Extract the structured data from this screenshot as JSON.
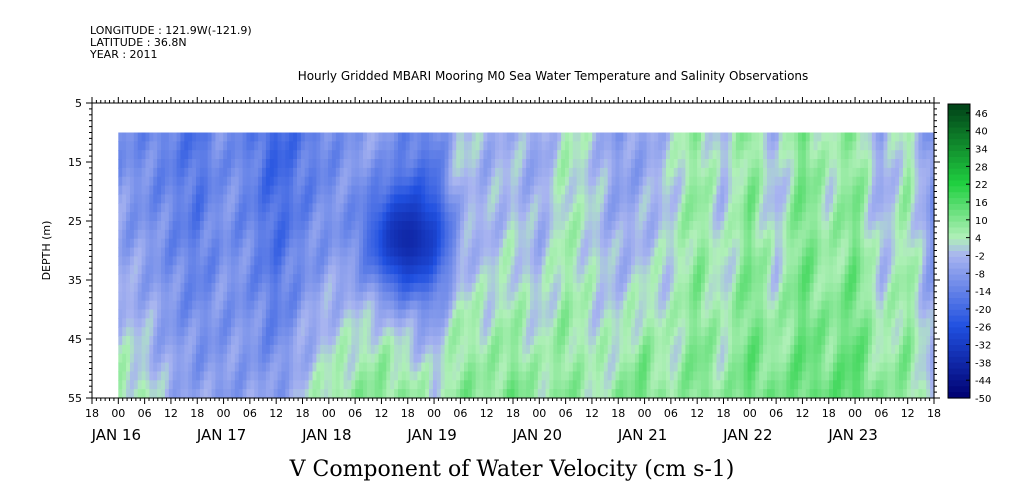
{
  "header": {
    "longitude": "LONGITUDE : 121.9W(-121.9)",
    "latitude": "LATITUDE : 36.8N",
    "year": "YEAR : 2011"
  },
  "chart_data": {
    "type": "heatmap",
    "title": "Hourly Gridded MBARI Mooring M0 Sea Water Temperature and Salinity Observations",
    "xlabel": "",
    "ylabel": "DEPTH (m)",
    "caption": "V Component of Water Velocity (cm s-1)",
    "y_ticks": [
      "5",
      "15",
      "25",
      "35",
      "45",
      "55"
    ],
    "y_range": [
      5,
      55
    ],
    "y_inverted": true,
    "data_depth_range": [
      10,
      55
    ],
    "x_hour_ticks": [
      "18",
      "00",
      "06",
      "12",
      "18",
      "00",
      "06",
      "12",
      "18",
      "00",
      "06",
      "12",
      "18",
      "00",
      "06",
      "12",
      "18",
      "00",
      "06",
      "12",
      "18",
      "00",
      "06",
      "12",
      "18",
      "00",
      "06",
      "12",
      "18",
      "00",
      "06",
      "12",
      "18"
    ],
    "x_date_labels": [
      "JAN 16",
      "JAN 17",
      "JAN 18",
      "JAN 19",
      "JAN 20",
      "JAN 21",
      "JAN 22",
      "JAN 23"
    ],
    "x_range": [
      "2011-01-15T18:00",
      "2011-01-23T18:00"
    ],
    "data_time_range": [
      "2011-01-16T00:00",
      "2011-01-23T18:00"
    ],
    "colorbar": {
      "labels": [
        "46",
        "40",
        "34",
        "28",
        "22",
        "16",
        "10",
        "4",
        "-2",
        "-8",
        "-14",
        "-20",
        "-26",
        "-32",
        "-38",
        "-44",
        "-50"
      ],
      "range": [
        -50,
        49
      ]
    },
    "v_profile": {
      "time_hours_from_x_start": [
        6,
        12,
        18,
        24,
        30,
        36,
        42,
        48,
        54,
        60,
        66,
        72,
        78,
        84,
        90,
        96,
        102,
        108,
        114,
        120,
        126,
        132,
        138,
        144,
        150,
        156,
        162,
        168,
        174,
        180,
        186,
        192
      ],
      "surface_value": [
        -10,
        -12,
        -14,
        -18,
        -10,
        -14,
        -22,
        -16,
        -12,
        -8,
        -6,
        -12,
        -14,
        2,
        -4,
        -2,
        -6,
        4,
        0,
        -8,
        -6,
        0,
        8,
        -2,
        10,
        -4,
        12,
        2,
        10,
        -6,
        6,
        -12
      ],
      "bottom_value": [
        6,
        4,
        -4,
        -6,
        -8,
        -6,
        -8,
        0,
        6,
        8,
        10,
        8,
        2,
        10,
        8,
        12,
        6,
        10,
        4,
        8,
        14,
        4,
        12,
        6,
        14,
        10,
        14,
        12,
        16,
        8,
        10,
        -2
      ]
    },
    "notable_features": [
      {
        "label": "strong southward flow core",
        "time": "2011-01-18T18:00",
        "depth": 28,
        "value": -38
      }
    ]
  },
  "colors": {
    "negative_strong": "#000070",
    "negative_mid": "#2050e0",
    "negative_weak": "#a8b4f0",
    "positive_weak": "#b0f0b8",
    "positive_mid": "#20d040",
    "positive_strong": "#004018"
  }
}
